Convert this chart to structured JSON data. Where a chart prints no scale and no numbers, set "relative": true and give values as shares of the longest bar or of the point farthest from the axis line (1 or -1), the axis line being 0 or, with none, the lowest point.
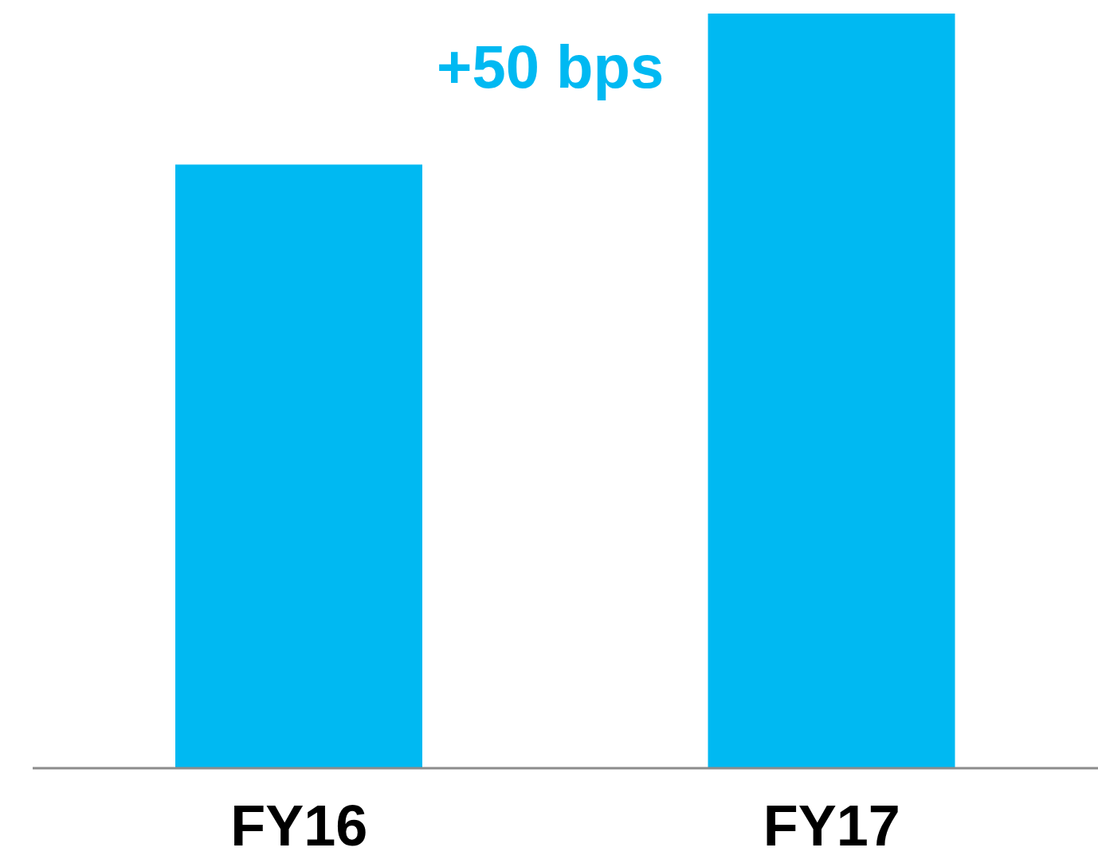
{
  "chart_data": {
    "type": "bar",
    "relative": true,
    "categories": [
      "FY16",
      "FY17"
    ],
    "values": [
      0.8,
      1
    ],
    "color": "#00b9f2",
    "annotations": [
      "+50 bps"
    ]
  }
}
